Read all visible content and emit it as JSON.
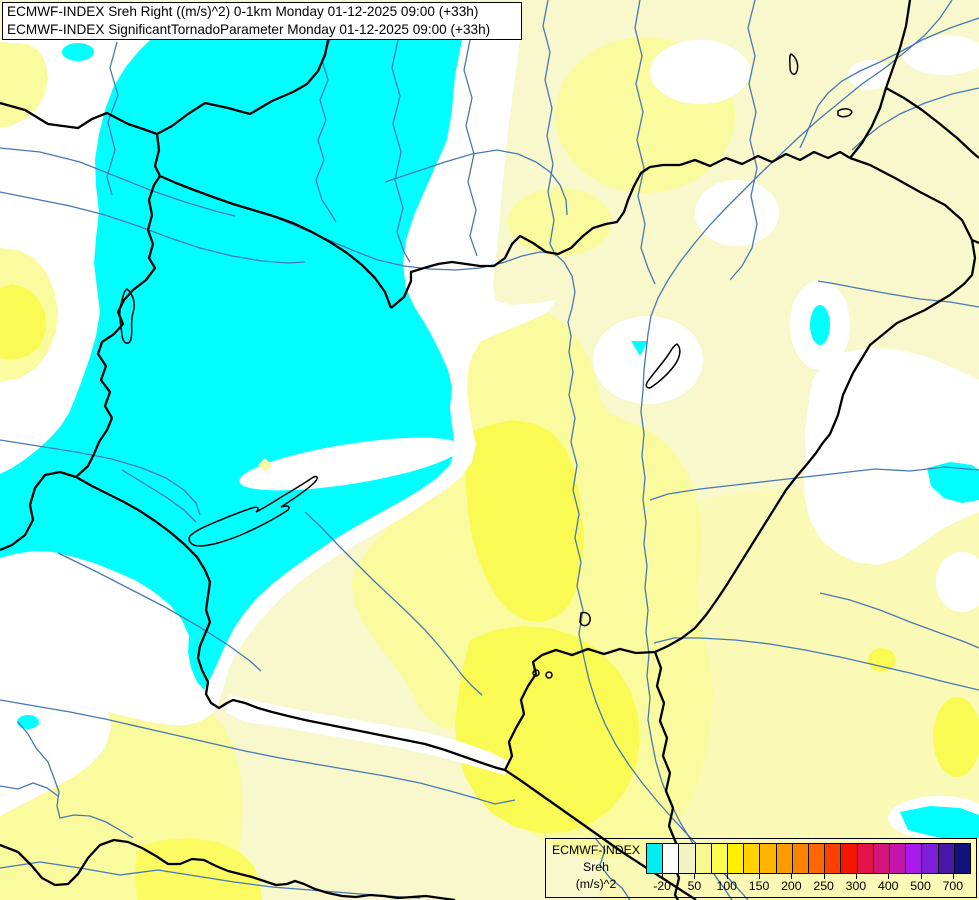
{
  "header": {
    "line1": "ECMWF-INDEX Sreh Right ((m/s)^2) 0-1km Monday 01-12-2025 09:00 (+33h)",
    "line2": "ECMWF-INDEX SignificantTornadoParameter Monday 01-12-2025 09:00 (+33h)"
  },
  "legend": {
    "title": "ECMWF-INDEX",
    "subtitle": "Sreh",
    "units": "(m/s)^2",
    "colorbar": {
      "colors": [
        "#00EEEE",
        "#FFFFFF",
        "#F2F2C2",
        "#F8F88E",
        "#FBFB50",
        "#FFF000",
        "#FFD200",
        "#FFB400",
        "#FF9A00",
        "#FF8200",
        "#FF6600",
        "#FF4000",
        "#F51500",
        "#E4124A",
        "#D31478",
        "#C414AC",
        "#AA1AE8",
        "#7E1ED8",
        "#4A16AA",
        "#12127E"
      ],
      "tick_labels": [
        "-20",
        "50",
        "100",
        "150",
        "200",
        "250",
        "300",
        "400",
        "500",
        "700"
      ],
      "tick_boundaries": [
        1,
        3,
        5,
        7,
        9,
        11,
        13,
        15,
        17,
        19
      ]
    }
  },
  "map": {
    "field_colors": {
      "background": "#F8F8CC",
      "soft_yellow": "#FAFAB6",
      "pale_yellow": "#FAFA9E",
      "medium_yellow": "#FAFA55",
      "bright_yellow": "#FBFB62",
      "white": "#FFFFFF",
      "cyan": "#00FFFF",
      "river_blue": "#4878B4",
      "border_black": "#000000"
    }
  }
}
